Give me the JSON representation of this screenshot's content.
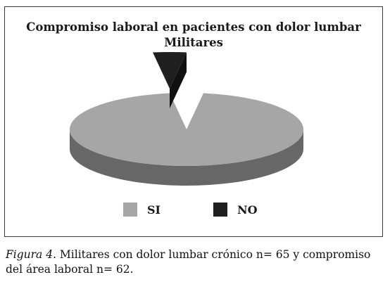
{
  "chart_data": {
    "type": "pie",
    "title": "Compromiso laboral en pacientes con dolor lumbar",
    "subtitle": "Militares",
    "categories": [
      "SI",
      "NO"
    ],
    "values": [
      62,
      3
    ],
    "colors": [
      "#a6a6a6",
      "#1f1f1f"
    ],
    "exploded": "NO",
    "style": "3d",
    "legend": "bottom"
  },
  "caption": {
    "label": "Figura 4",
    "text": ". Militares con dolor lumbar crónico n= 65 y compromiso del área laboral n= 62."
  }
}
